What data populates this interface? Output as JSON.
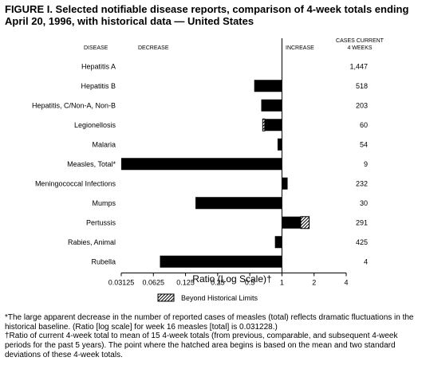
{
  "title": "FIGURE I. Selected notifiable disease reports, comparison of 4-week totals ending April 20, 1996, with historical data — United States",
  "headers": {
    "disease": "DISEASE",
    "decrease": "DECREASE",
    "increase": "INCREASE",
    "cases_line1": "CASES CURRENT",
    "cases_line2": "4 WEEKS"
  },
  "legend_label": "Beyond Historical Limits",
  "footnotes": [
    "*The large apparent decrease in the number of reported cases of measles (total) reflects dramatic fluctuations in the historical baseline. (Ratio [log scale] for week 16 measles [total] is 0.031228.)",
    "†Ratio of current 4-week total to mean of 15 4-week totals (from previous, comparable, and subsequent 4-week periods for the past 5 years). The point where the hatched area begins is based on the mean and two standard deviations of these 4-week totals."
  ],
  "chart_data": {
    "type": "bar",
    "orientation": "horizontal",
    "xlabel": "Ratio (Log Scale)†",
    "xscale": "log2",
    "xlim": [
      0.03125,
      4
    ],
    "xticks": [
      "0.03125",
      "0.0625",
      "0.125",
      "0.25",
      "0.5",
      "1",
      "2",
      "4"
    ],
    "reference_line": 1,
    "categories": [
      "Hepatitis A",
      "Hepatitis B",
      "Hepatitis, C/Non-A, Non-B",
      "Legionellosis",
      "Malaria",
      "Measles, Total*",
      "Meningococcal Infections",
      "Mumps",
      "Pertussis",
      "Rabies, Animal",
      "Rubella"
    ],
    "ratios": [
      1.0,
      0.55,
      0.64,
      0.66,
      0.91,
      0.03125,
      1.13,
      0.155,
      1.8,
      0.86,
      0.072
    ],
    "beyond_limits_start": [
      null,
      null,
      null,
      0.69,
      null,
      null,
      null,
      null,
      1.5,
      null,
      null
    ],
    "cases": [
      "1,447",
      "518",
      "203",
      "60",
      "54",
      "9",
      "232",
      "30",
      "291",
      "425",
      "4"
    ]
  }
}
